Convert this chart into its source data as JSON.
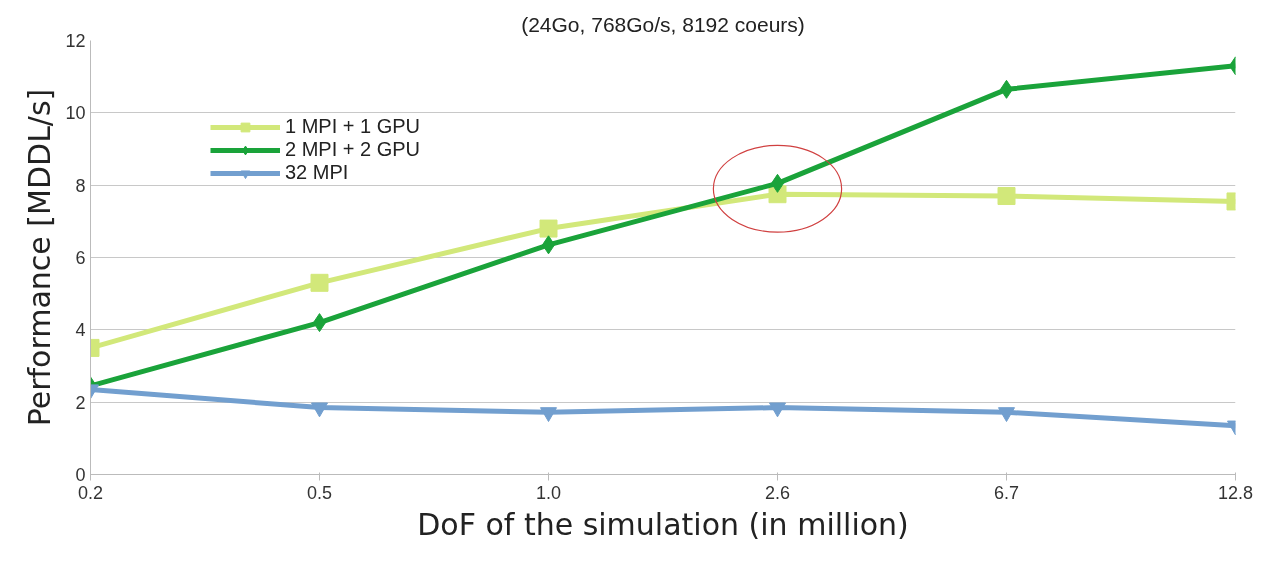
{
  "chart_data": {
    "type": "line",
    "title": "(24Go, 768Go/s, 8192 coeurs)",
    "xlabel": "DoF of the simulation (in million)",
    "ylabel": "Performance [MDDL/s]",
    "categories": [
      "0.2",
      "0.5",
      "1.0",
      "2.6",
      "6.7",
      "12.8"
    ],
    "series": [
      {
        "name": "1 MPI + 1 GPU",
        "color": "#d2e87a",
        "marker": "square",
        "values": [
          3.5,
          5.3,
          6.8,
          7.75,
          7.7,
          7.55
        ]
      },
      {
        "name": "2 MPI + 2 GPU",
        "color": "#1aa33a",
        "marker": "diamond",
        "values": [
          2.45,
          4.2,
          6.35,
          8.05,
          10.65,
          11.3
        ]
      },
      {
        "name": "32 MPI",
        "color": "#729fcf",
        "marker": "triangle",
        "values": [
          2.35,
          1.85,
          1.72,
          1.85,
          1.72,
          1.35
        ]
      }
    ],
    "ylim": [
      0,
      12
    ],
    "yticks": [
      0,
      2,
      4,
      6,
      8,
      10,
      12
    ],
    "grid": "y",
    "legend": "top left",
    "line_style": "solid"
  }
}
